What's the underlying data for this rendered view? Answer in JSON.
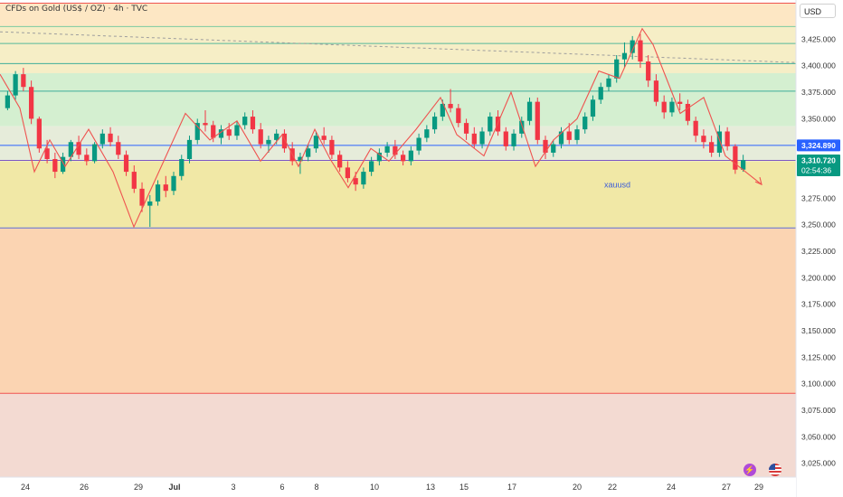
{
  "header": {
    "title": "CFDs on Gold (US$ / OZ) · 4h · TVC",
    "currency": "USD"
  },
  "annotations": {
    "symbol_label": "xauusd",
    "countdown": "02:54:36"
  },
  "chart_data": {
    "type": "candlestick",
    "symbol": "xauusd",
    "timeframe": "4h",
    "ylim": [
      3012,
      3462
    ],
    "y_ticks": [
      3025,
      3050,
      3075,
      3100,
      3125,
      3150,
      3175,
      3200,
      3225,
      3250,
      3275,
      3300,
      3325,
      3350,
      3375,
      3400,
      3425
    ],
    "y_tick_labels": [
      "3,025.000",
      "3,050.000",
      "3,075.000",
      "3,100.000",
      "3,125.000",
      "3,150.000",
      "3,175.000",
      "3,200.000",
      "3,225.000",
      "3,250.000",
      "3,275.000",
      "3,300.000",
      "3,325.000",
      "3,350.000",
      "3,375.000",
      "3,400.000",
      "3,425.000"
    ],
    "x_tick_labels": [
      "24",
      "26",
      "29",
      "Jul",
      "3",
      "6",
      "8",
      "10",
      "13",
      "15",
      "17",
      "20",
      "22",
      "24",
      "27",
      "29"
    ],
    "price_labels": [
      {
        "value": 3324.89,
        "label": "3,324.890",
        "color": "#2962ff"
      },
      {
        "value": 3310.72,
        "label": "3,310.720",
        "color": "#089981"
      }
    ],
    "zones": [
      {
        "from": 3437,
        "to": 3459,
        "color": "#fde7c4"
      },
      {
        "from": 3393,
        "to": 3437,
        "color": "#f6eec6"
      },
      {
        "from": 3343,
        "to": 3393,
        "color": "#d4efd0"
      },
      {
        "from": 3310,
        "to": 3343,
        "color": "#e6ecda"
      },
      {
        "from": 3247,
        "to": 3310,
        "color": "#f1e8a6"
      },
      {
        "from": 3091,
        "to": 3247,
        "color": "#fbd4b2"
      },
      {
        "from": 3012,
        "to": 3091,
        "color": "#f3dad2"
      }
    ],
    "hlines": [
      {
        "value": 3459,
        "color": "#ef5350"
      },
      {
        "value": 3437,
        "color": "#7cc9a0"
      },
      {
        "value": 3421,
        "color": "#56b89b"
      },
      {
        "value": 3402,
        "color": "#3fae9a"
      },
      {
        "value": 3376,
        "color": "#3fae9a"
      },
      {
        "value": 3324.89,
        "color": "#2962ff"
      },
      {
        "value": 3310.72,
        "color": "#7e57c2"
      },
      {
        "value": 3247,
        "color": "#5b6fd6"
      },
      {
        "value": 3091,
        "color": "#ef5350"
      }
    ],
    "trendline": {
      "x1": 0,
      "y1": 3432,
      "x2": 880,
      "y2": 3403,
      "color": "#9e9e9e"
    },
    "candles": [
      [
        3360,
        3376,
        3358,
        3372
      ],
      [
        3372,
        3395,
        3368,
        3392
      ],
      [
        3392,
        3398,
        3376,
        3380
      ],
      [
        3380,
        3386,
        3345,
        3350
      ],
      [
        3350,
        3352,
        3318,
        3322
      ],
      [
        3322,
        3330,
        3308,
        3312
      ],
      [
        3312,
        3318,
        3294,
        3300
      ],
      [
        3300,
        3318,
        3298,
        3314
      ],
      [
        3314,
        3330,
        3310,
        3328
      ],
      [
        3328,
        3334,
        3312,
        3316
      ],
      [
        3316,
        3322,
        3306,
        3310
      ],
      [
        3310,
        3328,
        3308,
        3326
      ],
      [
        3326,
        3340,
        3322,
        3336
      ],
      [
        3336,
        3342,
        3324,
        3328
      ],
      [
        3328,
        3334,
        3312,
        3316
      ],
      [
        3316,
        3320,
        3296,
        3300
      ],
      [
        3300,
        3306,
        3280,
        3284
      ],
      [
        3284,
        3290,
        3262,
        3268
      ],
      [
        3268,
        3278,
        3248,
        3272
      ],
      [
        3272,
        3292,
        3268,
        3288
      ],
      [
        3288,
        3296,
        3276,
        3282
      ],
      [
        3282,
        3300,
        3278,
        3296
      ],
      [
        3296,
        3316,
        3292,
        3312
      ],
      [
        3312,
        3334,
        3308,
        3330
      ],
      [
        3330,
        3350,
        3326,
        3346
      ],
      [
        3346,
        3358,
        3338,
        3344
      ],
      [
        3344,
        3348,
        3328,
        3332
      ],
      [
        3332,
        3344,
        3326,
        3340
      ],
      [
        3340,
        3346,
        3330,
        3334
      ],
      [
        3334,
        3348,
        3330,
        3344
      ],
      [
        3344,
        3356,
        3340,
        3352
      ],
      [
        3352,
        3358,
        3336,
        3340
      ],
      [
        3340,
        3346,
        3322,
        3326
      ],
      [
        3326,
        3334,
        3318,
        3330
      ],
      [
        3330,
        3340,
        3326,
        3336
      ],
      [
        3336,
        3340,
        3318,
        3322
      ],
      [
        3322,
        3328,
        3306,
        3310
      ],
      [
        3310,
        3318,
        3298,
        3314
      ],
      [
        3314,
        3326,
        3310,
        3322
      ],
      [
        3322,
        3338,
        3318,
        3334
      ],
      [
        3334,
        3342,
        3326,
        3330
      ],
      [
        3330,
        3334,
        3312,
        3316
      ],
      [
        3316,
        3320,
        3300,
        3304
      ],
      [
        3304,
        3310,
        3290,
        3294
      ],
      [
        3294,
        3300,
        3282,
        3288
      ],
      [
        3288,
        3304,
        3284,
        3300
      ],
      [
        3300,
        3314,
        3296,
        3310
      ],
      [
        3310,
        3322,
        3306,
        3318
      ],
      [
        3318,
        3328,
        3314,
        3324
      ],
      [
        3324,
        3330,
        3312,
        3316
      ],
      [
        3316,
        3320,
        3306,
        3310
      ],
      [
        3310,
        3324,
        3306,
        3320
      ],
      [
        3320,
        3336,
        3316,
        3332
      ],
      [
        3332,
        3344,
        3328,
        3340
      ],
      [
        3340,
        3356,
        3336,
        3352
      ],
      [
        3352,
        3368,
        3348,
        3364
      ],
      [
        3364,
        3378,
        3356,
        3360
      ],
      [
        3360,
        3364,
        3342,
        3346
      ],
      [
        3346,
        3350,
        3330,
        3336
      ],
      [
        3336,
        3342,
        3322,
        3326
      ],
      [
        3326,
        3342,
        3322,
        3338
      ],
      [
        3338,
        3356,
        3334,
        3352
      ],
      [
        3352,
        3358,
        3334,
        3338
      ],
      [
        3338,
        3342,
        3320,
        3324
      ],
      [
        3324,
        3340,
        3320,
        3336
      ],
      [
        3336,
        3352,
        3332,
        3348
      ],
      [
        3348,
        3370,
        3344,
        3366
      ],
      [
        3366,
        3370,
        3326,
        3330
      ],
      [
        3330,
        3334,
        3312,
        3318
      ],
      [
        3318,
        3330,
        3314,
        3326
      ],
      [
        3326,
        3342,
        3322,
        3338
      ],
      [
        3338,
        3346,
        3326,
        3330
      ],
      [
        3330,
        3344,
        3326,
        3340
      ],
      [
        3340,
        3356,
        3336,
        3352
      ],
      [
        3352,
        3372,
        3348,
        3368
      ],
      [
        3368,
        3384,
        3364,
        3380
      ],
      [
        3380,
        3392,
        3376,
        3388
      ],
      [
        3388,
        3410,
        3384,
        3406
      ],
      [
        3406,
        3422,
        3398,
        3412
      ],
      [
        3412,
        3428,
        3406,
        3424
      ],
      [
        3424,
        3430,
        3398,
        3404
      ],
      [
        3404,
        3410,
        3380,
        3386
      ],
      [
        3386,
        3392,
        3362,
        3366
      ],
      [
        3366,
        3372,
        3350,
        3356
      ],
      [
        3356,
        3370,
        3352,
        3366
      ],
      [
        3366,
        3374,
        3358,
        3364
      ],
      [
        3364,
        3368,
        3344,
        3348
      ],
      [
        3348,
        3352,
        3328,
        3334
      ],
      [
        3334,
        3340,
        3322,
        3328
      ],
      [
        3328,
        3334,
        3314,
        3318
      ],
      [
        3318,
        3344,
        3314,
        3338
      ],
      [
        3338,
        3342,
        3320,
        3324
      ],
      [
        3324,
        3326,
        3298,
        3302
      ],
      [
        3302,
        3316,
        3300,
        3311
      ]
    ],
    "drawings": [
      [
        [
          0,
          3392
        ],
        [
          22,
          3360
        ],
        [
          38,
          3300
        ],
        [
          55,
          3330
        ],
        [
          72,
          3305
        ],
        [
          98,
          3340
        ],
        [
          125,
          3300
        ],
        [
          148,
          3248
        ],
        [
          165,
          3280
        ],
        [
          205,
          3355
        ],
        [
          232,
          3330
        ],
        [
          262,
          3348
        ],
        [
          288,
          3310
        ],
        [
          312,
          3335
        ],
        [
          330,
          3305
        ],
        [
          348,
          3340
        ],
        [
          365,
          3312
        ],
        [
          385,
          3285
        ],
        [
          410,
          3322
        ],
        [
          430,
          3310
        ],
        [
          460,
          3340
        ],
        [
          487,
          3370
        ],
        [
          505,
          3335
        ],
        [
          535,
          3315
        ],
        [
          565,
          3375
        ],
        [
          592,
          3305
        ],
        [
          612,
          3330
        ],
        [
          638,
          3350
        ],
        [
          662,
          3395
        ],
        [
          685,
          3388
        ],
        [
          710,
          3435
        ],
        [
          722,
          3420
        ],
        [
          752,
          3355
        ],
        [
          778,
          3370
        ],
        [
          802,
          3315
        ],
        [
          842,
          3288
        ]
      ]
    ]
  }
}
